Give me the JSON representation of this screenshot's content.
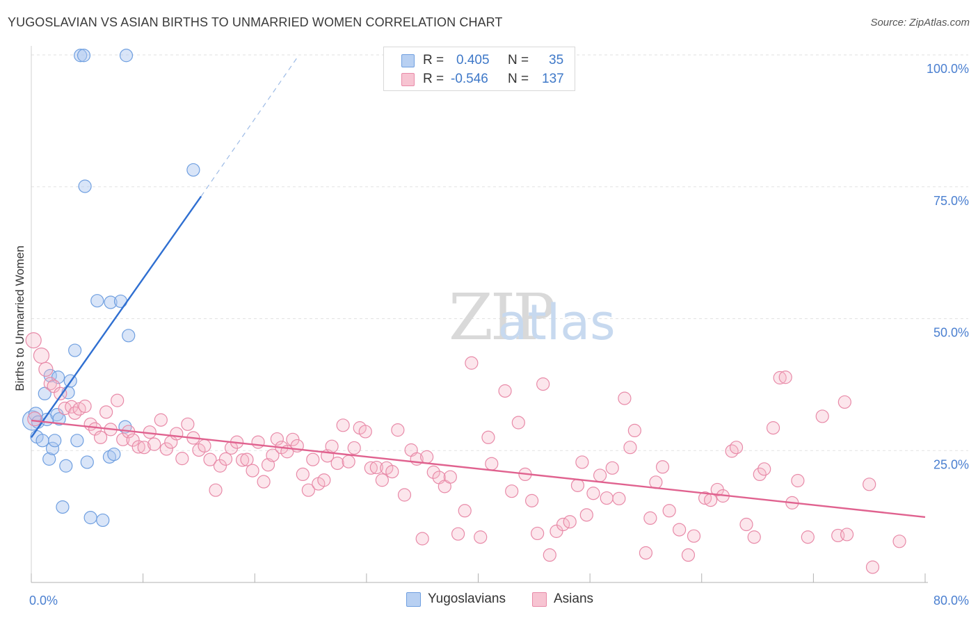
{
  "title": "YUGOSLAVIAN VS ASIAN BIRTHS TO UNMARRIED WOMEN CORRELATION CHART",
  "source": "Source: ZipAtlas.com",
  "watermark": {
    "zip": "ZIP",
    "atlas": "atlas"
  },
  "stats": [
    {
      "r_label": "R =",
      "r_value": "0.405",
      "n_label": "N =",
      "n_value": "35",
      "color": "#6f9fe0"
    },
    {
      "r_label": "R =",
      "r_value": "-0.546",
      "n_label": "N =",
      "n_value": "137",
      "color": "#e88aa8"
    }
  ],
  "legend": [
    {
      "label": "Yugoslavians",
      "color": "#6f9fe0"
    },
    {
      "label": "Asians",
      "color": "#e88aa8"
    }
  ],
  "chart_data": {
    "type": "scatter",
    "title": "YUGOSLAVIAN VS ASIAN BIRTHS TO UNMARRIED WOMEN CORRELATION CHART",
    "xlabel": "",
    "ylabel": "Births to Unmarried Women",
    "xlim": [
      0,
      80
    ],
    "ylim": [
      0,
      100
    ],
    "x_tick_labels": [
      {
        "value": 0,
        "label": "0.0%"
      },
      {
        "value": 80,
        "label": "80.0%"
      }
    ],
    "y_tick_labels": [
      {
        "value": 100,
        "label": "100.0%"
      },
      {
        "value": 75,
        "label": "75.0%"
      },
      {
        "value": 50,
        "label": "50.0%"
      },
      {
        "value": 25,
        "label": "25.0%"
      }
    ],
    "series": [
      {
        "name": "Yugoslavians",
        "color": "#6f9fe0",
        "trend": {
          "x0": 0,
          "y0": 27.5,
          "x1": 15.2,
          "y1": 73.2,
          "dash_to_x": 23.8,
          "dash_to_y": 99.5
        },
        "points": [
          [
            0.1,
            30.7,
            14
          ],
          [
            0.4,
            31.9,
            10
          ],
          [
            0.6,
            30.4,
            9
          ],
          [
            0.5,
            27.6,
            9
          ],
          [
            1.0,
            26.9,
            9
          ],
          [
            1.2,
            35.8,
            9
          ],
          [
            1.4,
            30.9,
            9
          ],
          [
            1.6,
            23.4,
            9
          ],
          [
            1.7,
            39.2,
            9
          ],
          [
            1.9,
            25.4,
            9
          ],
          [
            2.1,
            26.9,
            9
          ],
          [
            2.3,
            31.8,
            9
          ],
          [
            2.5,
            31.0,
            9
          ],
          [
            2.4,
            38.9,
            9
          ],
          [
            2.8,
            14.3,
            9
          ],
          [
            3.1,
            22.1,
            9
          ],
          [
            3.3,
            36.0,
            9
          ],
          [
            3.5,
            38.2,
            9
          ],
          [
            3.9,
            44.0,
            9
          ],
          [
            4.1,
            26.9,
            9
          ],
          [
            4.4,
            99.9,
            9
          ],
          [
            4.7,
            99.9,
            9
          ],
          [
            4.8,
            75.1,
            9
          ],
          [
            5.0,
            22.8,
            9
          ],
          [
            5.3,
            12.3,
            9
          ],
          [
            5.9,
            53.4,
            9
          ],
          [
            6.4,
            11.8,
            9
          ],
          [
            7.1,
            53.1,
            9
          ],
          [
            7.0,
            23.8,
            9
          ],
          [
            7.4,
            24.3,
            9
          ],
          [
            8.0,
            53.3,
            9
          ],
          [
            8.4,
            29.5,
            9
          ],
          [
            8.7,
            46.8,
            9
          ],
          [
            8.5,
            99.9,
            9
          ],
          [
            14.5,
            78.2,
            9
          ]
        ]
      },
      {
        "name": "Asians",
        "color": "#e88aa8",
        "trend": {
          "x0": 0,
          "y0": 30.7,
          "x1": 80,
          "y1": 12.4
        },
        "points": [
          [
            0.2,
            45.9,
            11
          ],
          [
            0.3,
            31.0,
            10
          ],
          [
            0.9,
            43.0,
            11
          ],
          [
            1.3,
            40.4,
            10
          ],
          [
            1.7,
            37.7,
            9
          ],
          [
            2.0,
            37.2,
            9
          ],
          [
            2.6,
            35.8,
            9
          ],
          [
            3.0,
            33.0,
            9
          ],
          [
            3.6,
            33.3,
            9
          ],
          [
            3.9,
            32.1,
            9
          ],
          [
            4.3,
            32.9,
            9
          ],
          [
            4.8,
            33.4,
            9
          ],
          [
            5.3,
            30.0,
            9
          ],
          [
            5.7,
            29.1,
            9
          ],
          [
            6.2,
            27.5,
            9
          ],
          [
            6.7,
            32.3,
            9
          ],
          [
            7.1,
            29.0,
            9
          ],
          [
            7.7,
            34.5,
            9
          ],
          [
            8.2,
            27.1,
            9
          ],
          [
            8.7,
            28.6,
            9
          ],
          [
            9.1,
            27.0,
            9
          ],
          [
            9.6,
            25.7,
            9
          ],
          [
            10.1,
            25.6,
            9
          ],
          [
            10.6,
            28.5,
            9
          ],
          [
            11.0,
            26.2,
            9
          ],
          [
            11.6,
            30.8,
            9
          ],
          [
            12.1,
            25.3,
            9
          ],
          [
            12.5,
            26.6,
            9
          ],
          [
            13.0,
            28.2,
            9
          ],
          [
            13.5,
            23.5,
            9
          ],
          [
            14.0,
            30.0,
            9
          ],
          [
            14.5,
            27.4,
            9
          ],
          [
            15.0,
            25.1,
            9
          ],
          [
            15.5,
            25.9,
            9
          ],
          [
            16.0,
            23.3,
            9
          ],
          [
            16.5,
            17.5,
            9
          ],
          [
            16.9,
            22.1,
            9
          ],
          [
            17.4,
            23.4,
            9
          ],
          [
            17.9,
            25.5,
            9
          ],
          [
            18.4,
            26.6,
            9
          ],
          [
            18.9,
            23.2,
            9
          ],
          [
            19.3,
            23.3,
            9
          ],
          [
            19.8,
            21.2,
            9
          ],
          [
            20.3,
            26.6,
            9
          ],
          [
            20.8,
            19.1,
            9
          ],
          [
            21.2,
            22.3,
            9
          ],
          [
            21.6,
            24.1,
            9
          ],
          [
            22.0,
            27.2,
            9
          ],
          [
            22.4,
            25.6,
            9
          ],
          [
            22.9,
            24.8,
            9
          ],
          [
            23.4,
            27.1,
            9
          ],
          [
            23.8,
            25.9,
            9
          ],
          [
            24.3,
            20.5,
            9
          ],
          [
            24.8,
            17.5,
            9
          ],
          [
            25.2,
            23.3,
            9
          ],
          [
            25.7,
            18.7,
            9
          ],
          [
            26.2,
            19.4,
            9
          ],
          [
            26.5,
            24.0,
            9
          ],
          [
            26.9,
            25.8,
            9
          ],
          [
            27.4,
            22.6,
            9
          ],
          [
            27.9,
            29.8,
            9
          ],
          [
            28.4,
            22.9,
            9
          ],
          [
            28.9,
            25.5,
            9
          ],
          [
            29.4,
            29.3,
            9
          ],
          [
            29.9,
            28.6,
            9
          ],
          [
            30.4,
            21.7,
            9
          ],
          [
            30.9,
            21.8,
            9
          ],
          [
            31.4,
            19.4,
            9
          ],
          [
            31.8,
            21.7,
            9
          ],
          [
            32.3,
            21.0,
            9
          ],
          [
            32.8,
            28.9,
            9
          ],
          [
            33.4,
            16.6,
            9
          ],
          [
            34.0,
            25.1,
            9
          ],
          [
            34.5,
            23.4,
            9
          ],
          [
            35.0,
            8.3,
            9
          ],
          [
            35.4,
            23.8,
            9
          ],
          [
            36.0,
            20.9,
            9
          ],
          [
            36.5,
            19.9,
            9
          ],
          [
            37.0,
            18.2,
            9
          ],
          [
            37.5,
            20.0,
            9
          ],
          [
            38.2,
            9.2,
            9
          ],
          [
            38.8,
            13.6,
            9
          ],
          [
            39.4,
            41.6,
            9
          ],
          [
            40.2,
            8.6,
            9
          ],
          [
            40.9,
            27.5,
            9
          ],
          [
            41.2,
            22.5,
            9
          ],
          [
            42.4,
            36.3,
            9
          ],
          [
            43.0,
            17.3,
            9
          ],
          [
            43.6,
            30.3,
            9
          ],
          [
            44.2,
            20.5,
            9
          ],
          [
            44.8,
            15.5,
            9
          ],
          [
            45.3,
            9.3,
            9
          ],
          [
            45.8,
            37.6,
            9
          ],
          [
            46.4,
            5.2,
            9
          ],
          [
            47.0,
            9.7,
            9
          ],
          [
            47.6,
            11.0,
            9
          ],
          [
            48.2,
            11.5,
            9
          ],
          [
            48.9,
            18.4,
            9
          ],
          [
            49.3,
            22.8,
            9
          ],
          [
            49.7,
            12.8,
            9
          ],
          [
            50.3,
            16.9,
            9
          ],
          [
            50.9,
            20.3,
            9
          ],
          [
            51.5,
            16.0,
            9
          ],
          [
            52.0,
            21.7,
            9
          ],
          [
            52.6,
            15.9,
            9
          ],
          [
            53.1,
            34.9,
            9
          ],
          [
            53.6,
            25.6,
            9
          ],
          [
            54.0,
            28.8,
            9
          ],
          [
            55.0,
            5.6,
            9
          ],
          [
            55.4,
            12.2,
            9
          ],
          [
            55.9,
            19.0,
            9
          ],
          [
            56.5,
            21.9,
            9
          ],
          [
            57.1,
            13.6,
            9
          ],
          [
            58.0,
            10.0,
            9
          ],
          [
            58.8,
            5.2,
            9
          ],
          [
            59.3,
            8.8,
            9
          ],
          [
            60.3,
            16.0,
            9
          ],
          [
            60.8,
            15.6,
            9
          ],
          [
            61.4,
            17.6,
            9
          ],
          [
            61.9,
            16.4,
            9
          ],
          [
            62.7,
            24.9,
            9
          ],
          [
            63.1,
            25.6,
            9
          ],
          [
            64.0,
            11.0,
            9
          ],
          [
            64.7,
            8.6,
            9
          ],
          [
            65.2,
            20.5,
            9
          ],
          [
            65.6,
            21.5,
            9
          ],
          [
            66.4,
            29.3,
            9
          ],
          [
            67.0,
            38.8,
            9
          ],
          [
            67.5,
            38.9,
            9
          ],
          [
            68.1,
            15.1,
            9
          ],
          [
            68.6,
            19.3,
            9
          ],
          [
            69.5,
            8.6,
            9
          ],
          [
            70.8,
            31.5,
            9
          ],
          [
            72.2,
            8.9,
            9
          ],
          [
            72.8,
            34.2,
            9
          ],
          [
            73.0,
            9.1,
            9
          ],
          [
            75.0,
            18.6,
            9
          ],
          [
            75.3,
            2.9,
            9
          ],
          [
            77.7,
            7.8,
            9
          ]
        ]
      }
    ]
  }
}
